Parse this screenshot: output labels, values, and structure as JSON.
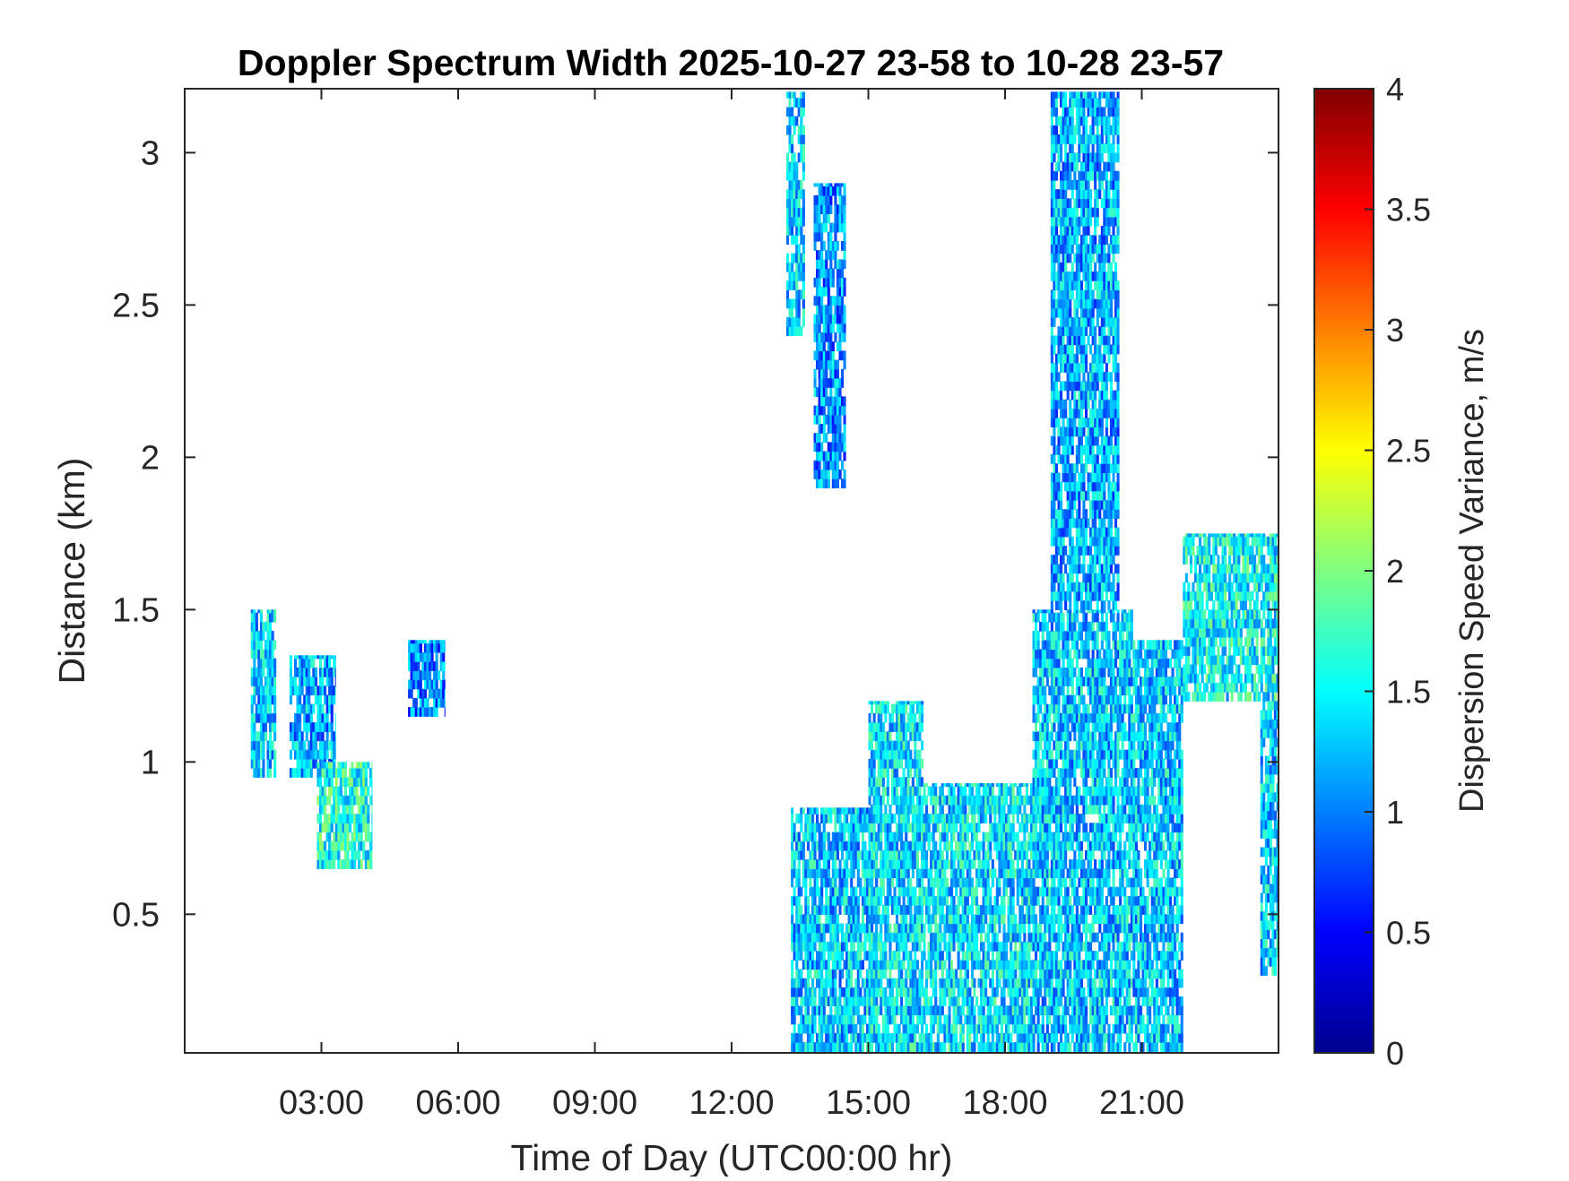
{
  "chart_data": {
    "type": "heatmap",
    "title": "Doppler Spectrum Width 2025-10-27 23-58 to 10-28 23-57",
    "xlabel": "Time of Day (UTC00:00 hr)",
    "ylabel": "Distance (km)",
    "colorbar_label": "Dispersion Speed Variance, m/s",
    "xlim": [
      0,
      24
    ],
    "ylim": [
      0.045,
      3.21
    ],
    "clim": [
      0,
      4
    ],
    "x_ticks": [
      3,
      6,
      9,
      12,
      15,
      18,
      21
    ],
    "x_tick_labels": [
      "03:00",
      "06:00",
      "09:00",
      "12:00",
      "15:00",
      "18:00",
      "21:00"
    ],
    "y_ticks": [
      0.5,
      1,
      1.5,
      2,
      2.5,
      3
    ],
    "y_tick_labels": [
      "0.5",
      "1",
      "1.5",
      "2",
      "2.5",
      "3"
    ],
    "colorbar_ticks": [
      0,
      0.5,
      1,
      1.5,
      2,
      2.5,
      3,
      3.5,
      4
    ],
    "colorbar_tick_labels": [
      "0",
      "0.5",
      "1",
      "1.5",
      "2",
      "2.5",
      "3",
      "3.5",
      "4"
    ],
    "colormap": "jet",
    "grid": false,
    "regions": [
      {
        "t": [
          1.45,
          2.0
        ],
        "z": [
          0.95,
          1.5
        ],
        "v": 1.3
      },
      {
        "t": [
          2.3,
          3.3
        ],
        "z": [
          0.95,
          1.35
        ],
        "v": 1.2
      },
      {
        "t": [
          2.9,
          4.1
        ],
        "z": [
          0.65,
          1.0
        ],
        "v": 1.6
      },
      {
        "t": [
          4.9,
          5.7
        ],
        "z": [
          1.15,
          1.4
        ],
        "v": 1.0
      },
      {
        "t": [
          13.2,
          13.6
        ],
        "z": [
          2.4,
          3.2
        ],
        "v": 1.3
      },
      {
        "t": [
          13.8,
          14.5
        ],
        "z": [
          1.9,
          2.9
        ],
        "v": 1.1
      },
      {
        "t": [
          13.3,
          15.2
        ],
        "z": [
          0.05,
          0.85
        ],
        "v": 1.3
      },
      {
        "t": [
          15.0,
          16.2
        ],
        "z": [
          0.05,
          1.2
        ],
        "v": 1.4
      },
      {
        "t": [
          16.2,
          18.6
        ],
        "z": [
          0.05,
          0.93
        ],
        "v": 1.4
      },
      {
        "t": [
          18.6,
          20.8
        ],
        "z": [
          0.05,
          1.5
        ],
        "v": 1.3
      },
      {
        "t": [
          19.0,
          20.5
        ],
        "z": [
          1.5,
          3.2
        ],
        "v": 1.2
      },
      {
        "t": [
          20.8,
          21.9
        ],
        "z": [
          0.05,
          1.4
        ],
        "v": 1.3
      },
      {
        "t": [
          21.9,
          24.0
        ],
        "z": [
          1.2,
          1.75
        ],
        "v": 1.5
      },
      {
        "t": [
          23.6,
          24.0
        ],
        "z": [
          0.3,
          1.2
        ],
        "v": 1.3
      }
    ]
  }
}
